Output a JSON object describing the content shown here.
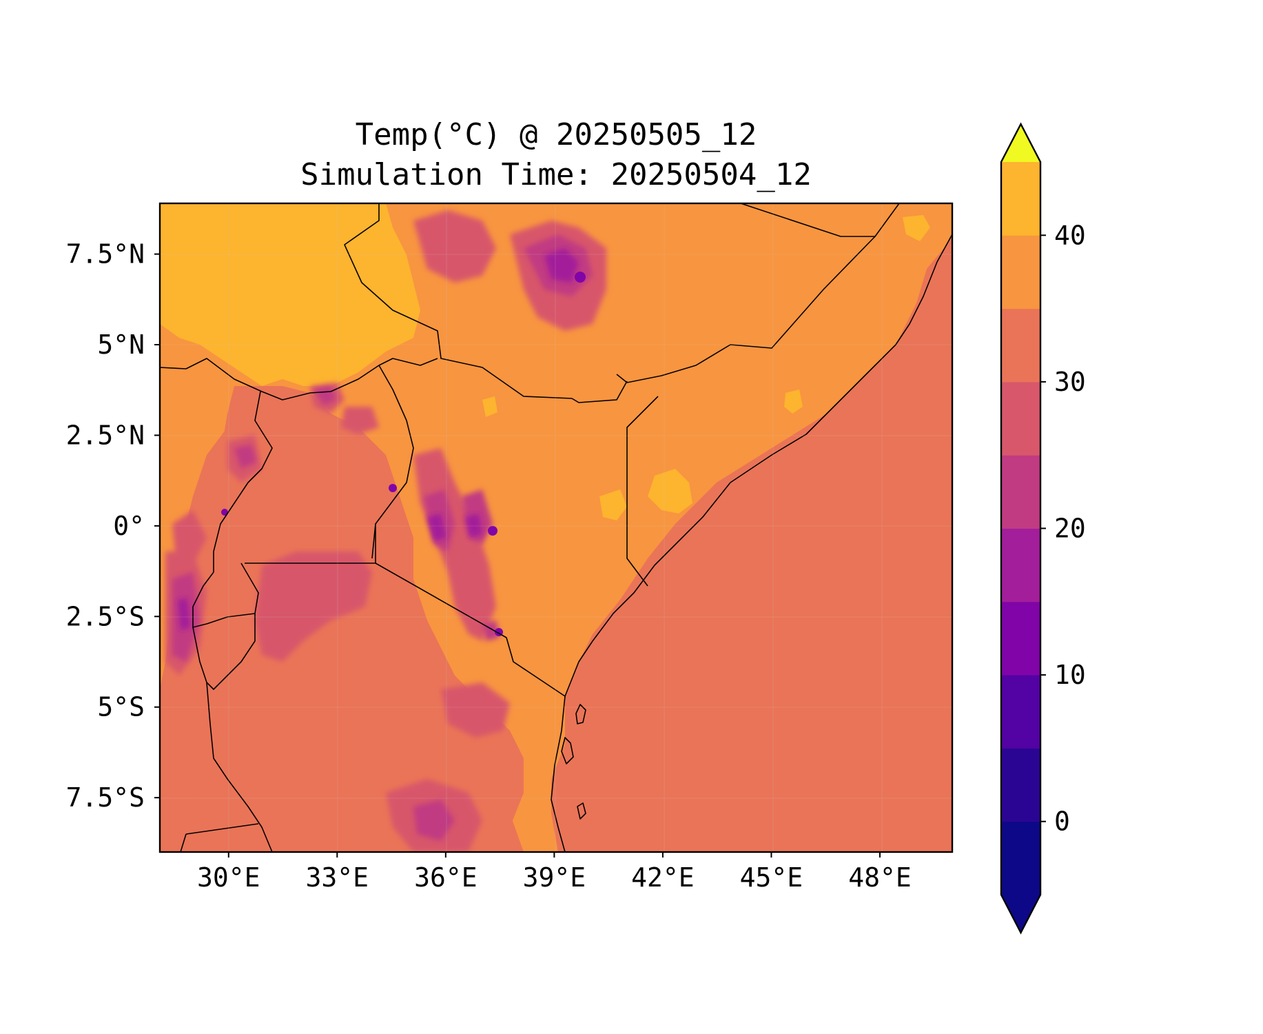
{
  "title": {
    "line1": "Temp(°C) @ 20250505_12",
    "line2": "Simulation Time: 20250504_12"
  },
  "map": {
    "x_ticks": [
      "30°E",
      "33°E",
      "36°E",
      "39°E",
      "42°E",
      "45°E",
      "48°E"
    ],
    "y_ticks": [
      "7.5°N",
      "5°N",
      "2.5°N",
      "0°",
      "2.5°S",
      "5°S",
      "7.5°S"
    ],
    "lon_range": [
      28.1,
      50.0
    ],
    "lat_range": [
      -9.0,
      8.9
    ]
  },
  "colorbar": {
    "levels": [
      -5,
      0,
      5,
      10,
      15,
      20,
      25,
      30,
      35,
      40,
      45
    ],
    "tick_labels": [
      "0",
      "10",
      "20",
      "30",
      "40"
    ],
    "tick_values": [
      0,
      10,
      20,
      30,
      40
    ],
    "colors": [
      "#0d0887",
      "#2a0593",
      "#5302a3",
      "#8004a8",
      "#a31e9a",
      "#c13b82",
      "#d8576b",
      "#ea7457",
      "#f89540",
      "#fdb42f",
      "#f3e023"
    ],
    "under_color": "#0d0887",
    "over_color": "#f0f921",
    "extend": "both"
  }
}
